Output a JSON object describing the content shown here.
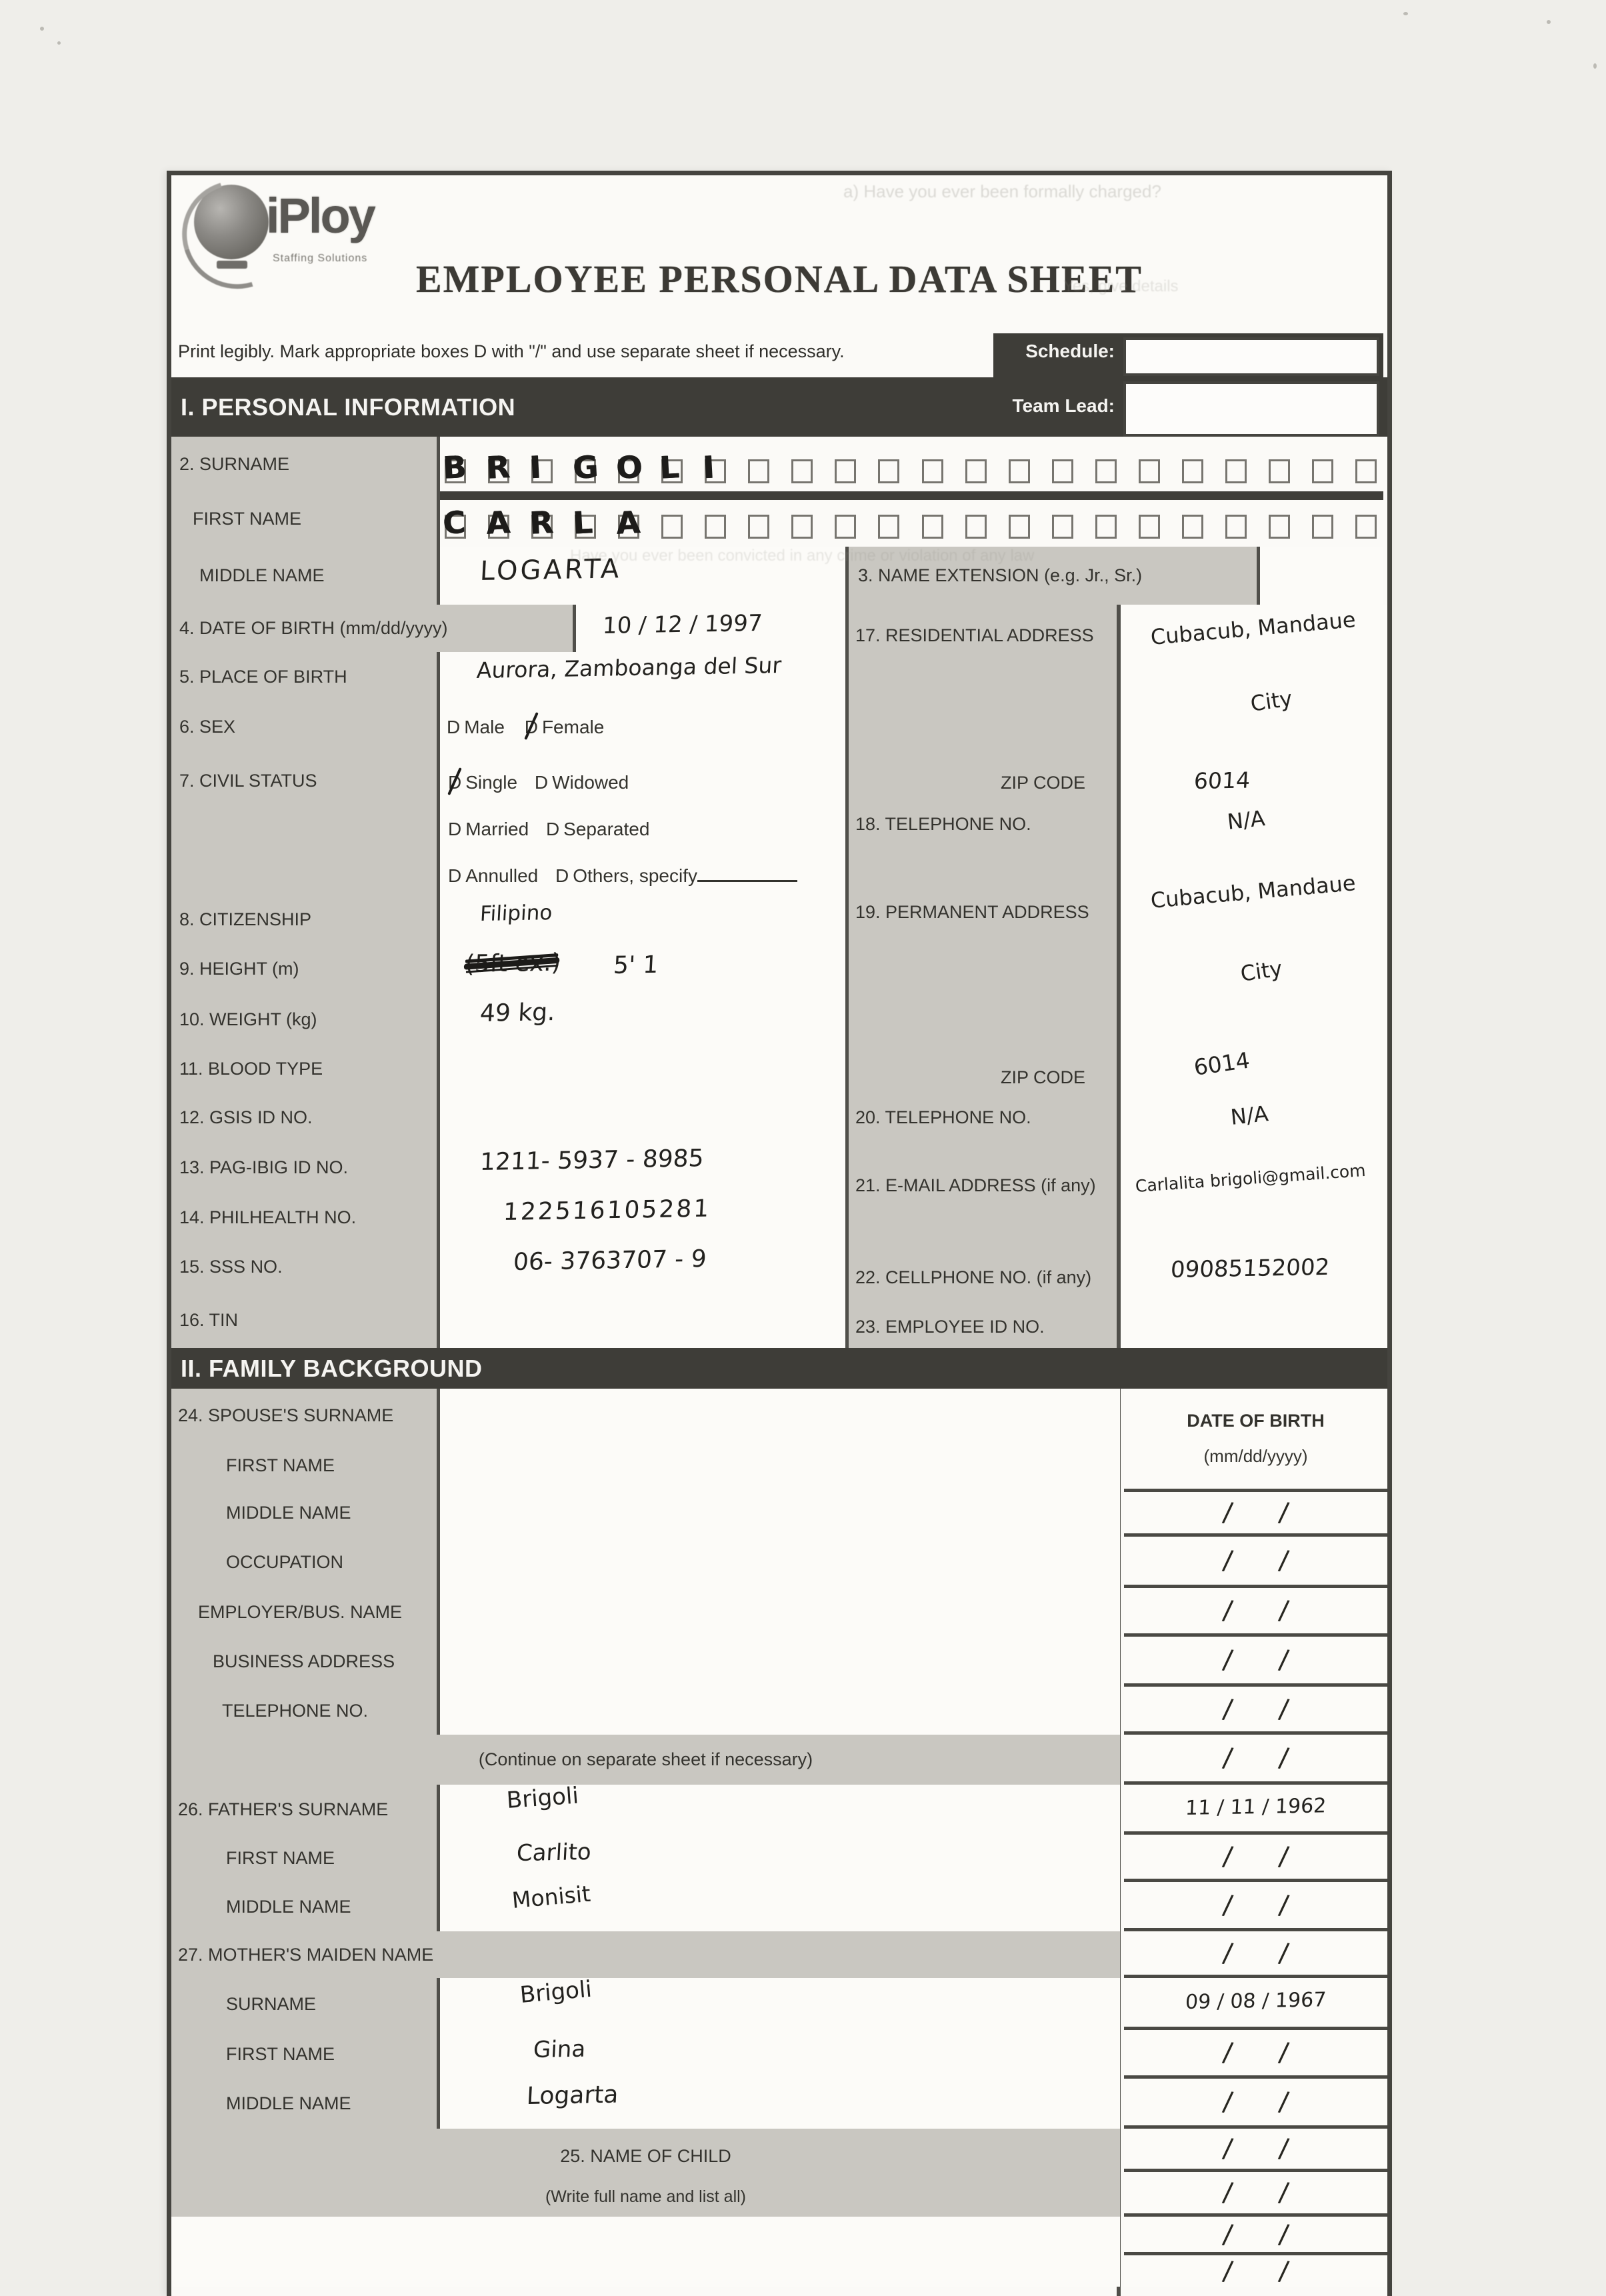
{
  "checkbox_char": "D",
  "header": {
    "logo_text": "iPloy",
    "logo_tagline": "Staffing Solutions",
    "title": "EMPLOYEE PERSONAL DATA SHEET",
    "instruction": "Print legibly.  Mark appropriate boxes  D with \"/\" and use separate sheet if necessary.",
    "schedule_label": "Schedule:",
    "schedule_value": "",
    "team_lead_label": "Team Lead:",
    "team_lead_value": ""
  },
  "s1": {
    "title": "I. PERSONAL INFORMATION",
    "surname": {
      "label": "2. SURNAME",
      "letters": [
        "B",
        "R",
        "I",
        "G",
        "O",
        "L",
        "I"
      ],
      "box_count": 22
    },
    "first_name": {
      "label": "FIRST NAME",
      "letters": [
        "C",
        "A",
        "R",
        "L",
        "A"
      ],
      "box_count": 22
    },
    "middle_name": {
      "label": "MIDDLE NAME",
      "value": "LOGARTA"
    },
    "name_extension": {
      "label": "3. NAME EXTENSION (e.g. Jr., Sr.)",
      "value": ""
    },
    "birth_date": {
      "label": "4. DATE OF BIRTH (mm/dd/yyyy)",
      "value": "10   /  12  /  1997"
    },
    "birth_place": {
      "label": "5. PLACE OF BIRTH",
      "value": "Aurora, Zamboanga del Sur"
    },
    "sex": {
      "label": "6. SEX",
      "male": "Male",
      "female": "Female",
      "checked": "Female"
    },
    "civil_status": {
      "label": "7. CIVIL STATUS",
      "single": "Single",
      "widowed": "Widowed",
      "married": "Married",
      "separated": "Separated",
      "annulled": "Annulled",
      "others": "Others, specify",
      "checked": "Single"
    },
    "citizenship": {
      "label": "8. CITIZENSHIP",
      "value": "Filipino"
    },
    "height": {
      "label": "9. HEIGHT (m)",
      "struck": "(5ft ex.)",
      "value": "5' 1"
    },
    "weight": {
      "label": "10. WEIGHT (kg)",
      "value": "49  kg."
    },
    "blood_type": {
      "label": "11. BLOOD TYPE",
      "value": ""
    },
    "gsis": {
      "label": "12. GSIS ID NO.",
      "value": ""
    },
    "pagibig": {
      "label": "13. PAG-IBIG ID NO.",
      "value": "1211-  5937  - 8985"
    },
    "philhealth": {
      "label": "14. PHILHEALTH NO.",
      "value": "122516105281"
    },
    "sss": {
      "label": "15. SSS NO.",
      "value": "06-  3763707 - 9"
    },
    "tin": {
      "label": "16. TIN",
      "value": ""
    },
    "residential": {
      "label": "17. RESIDENTIAL ADDRESS",
      "line1": "Cubacub, Mandaue",
      "line2": "City"
    },
    "zip1": {
      "label": "ZIP CODE",
      "value": "6014"
    },
    "tel18": {
      "label": "18. TELEPHONE NO.",
      "value": "N/A"
    },
    "permanent": {
      "label": "19. PERMANENT ADDRESS",
      "line1": "Cubacub, Mandaue",
      "line2": "City"
    },
    "zip2": {
      "label": "ZIP CODE",
      "value": "6014"
    },
    "tel20": {
      "label": "20. TELEPHONE NO.",
      "value": "N/A"
    },
    "email": {
      "label": "21. E-MAIL ADDRESS (if any)",
      "value": "Carlalita brigoli@gmail.com"
    },
    "cellphone": {
      "label": "22. CELLPHONE NO. (if any)",
      "value": "09085152002"
    },
    "employee_id": {
      "label": "23. EMPLOYEE ID NO.",
      "value": ""
    }
  },
  "s2": {
    "title": "II. FAMILY BACKGROUND",
    "date_header_line1": "DATE OF BIRTH",
    "date_header_line2": "(mm/dd/yyyy)",
    "rows": [
      {
        "label": "24. SPOUSE'S SURNAME",
        "value": ""
      },
      {
        "label": "FIRST NAME",
        "value": ""
      },
      {
        "label": "MIDDLE NAME",
        "value": ""
      },
      {
        "label": "OCCUPATION",
        "value": ""
      },
      {
        "label": "EMPLOYER/BUS. NAME",
        "value": ""
      },
      {
        "label": "BUSINESS ADDRESS",
        "value": ""
      },
      {
        "label": "TELEPHONE NO.",
        "value": ""
      },
      {
        "label": "(Continue on separate sheet if necessary)",
        "value": ""
      },
      {
        "label": "26. FATHER'S SURNAME",
        "value": "Brigoli"
      },
      {
        "label": "FIRST NAME",
        "value": "Carlito"
      },
      {
        "label": "MIDDLE NAME",
        "value": "Monisit"
      },
      {
        "label": "27. MOTHER'S MAIDEN NAME",
        "value": ""
      },
      {
        "label": "SURNAME",
        "value": "Brigoli"
      },
      {
        "label": "FIRST NAME",
        "value": "Gina"
      },
      {
        "label": "MIDDLE NAME",
        "value": "Logarta"
      },
      {
        "label": "25. NAME OF CHILD",
        "sub": "(Write full name and list all)",
        "value": ""
      },
      {
        "label": "",
        "value": ""
      },
      {
        "label": "",
        "value": ""
      }
    ],
    "dates": [
      "",
      "",
      "",
      "",
      "",
      "",
      "11  /  11  /  1962",
      "",
      "",
      "",
      "09  /  08  /  1967",
      "",
      "",
      "",
      "",
      "",
      ""
    ]
  },
  "artifacts": {
    "bleed_top": "a) Have you ever been formally charged?",
    "bleed_mid": "Yes, give details",
    "bleed_row": "Have you ever been convicted in any crime or violation of any law"
  }
}
